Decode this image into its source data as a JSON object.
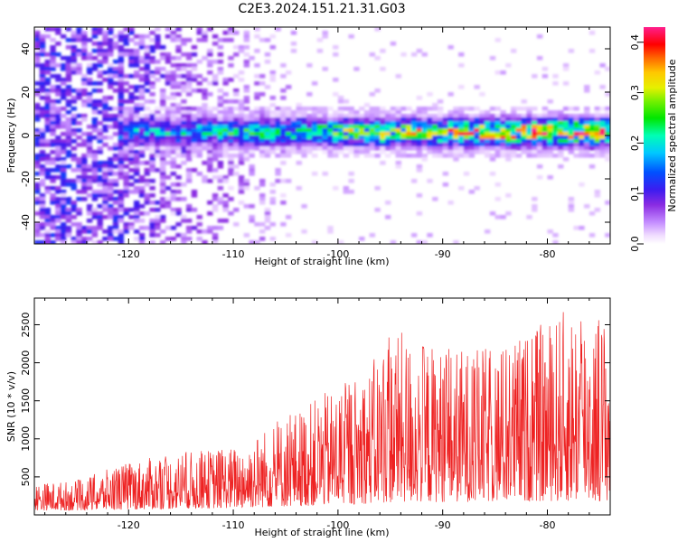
{
  "title": "C2E3.2024.151.21.31.G03",
  "chart_data": [
    {
      "type": "heatmap",
      "xlabel": "Height of straight line (km)",
      "ylabel": "Frequency (Hz)",
      "xlim": [
        -129,
        -74
      ],
      "ylim": [
        -50,
        50
      ],
      "x_ticks": [
        "-120",
        "-110",
        "-100",
        "-90",
        "-80"
      ],
      "y_ticks": [
        "40",
        "20",
        "0",
        "-20",
        "-40"
      ],
      "colorbar": {
        "label": "Normalized spectral amplitude",
        "range": [
          0.0,
          0.43
        ],
        "ticks": [
          "0.0",
          "0.1",
          "0.2",
          "0.3",
          "0.4"
        ],
        "colormap": "gist_ncar-like: white-violet-blue-cyan-green-yellow-red-magenta"
      },
      "description_of_data": "Strong band centred near 0 Hz (about -5 to +8 Hz) from -120 km to -74 km; diffuse scatter at all frequencies for heights below -108 km"
    },
    {
      "type": "line",
      "xlabel": "Height of straight line (km)",
      "ylabel": "SNR (10 * v/v)",
      "xlim": [
        -129,
        -74
      ],
      "ylim": [
        0,
        2850
      ],
      "x_ticks": [
        "-120",
        "-110",
        "-100",
        "-90",
        "-80"
      ],
      "y_ticks": [
        "500",
        "1000",
        "1500",
        "2000",
        "2500"
      ],
      "line_color": "#ee2222",
      "envelope": {
        "x": [
          -129,
          -125,
          -120,
          -115,
          -110,
          -105,
          -100,
          -97,
          -95,
          -90,
          -85,
          -80,
          -77,
          -74
        ],
        "y_max": [
          420,
          450,
          700,
          820,
          900,
          1300,
          1700,
          1950,
          2450,
          2200,
          2200,
          2550,
          2850,
          2600
        ],
        "y_min": [
          60,
          60,
          70,
          80,
          90,
          110,
          130,
          150,
          160,
          170,
          170,
          180,
          180,
          180
        ]
      }
    }
  ]
}
